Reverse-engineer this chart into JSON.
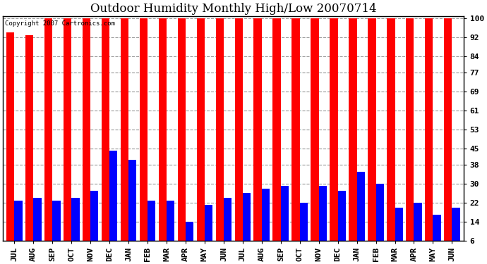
{
  "title": "Outdoor Humidity Monthly High/Low 20070714",
  "copyright_text": "Copyright 2007 Cartronics.com",
  "categories": [
    "JUL",
    "AUG",
    "SEP",
    "OCT",
    "NOV",
    "DEC",
    "JAN",
    "FEB",
    "MAR",
    "APR",
    "MAY",
    "JUN",
    "JUL",
    "AUG",
    "SEP",
    "OCT",
    "NOV",
    "DEC",
    "JAN",
    "FEB",
    "MAR",
    "APR",
    "MAY",
    "JUN"
  ],
  "high_values": [
    94,
    93,
    100,
    100,
    100,
    100,
    100,
    100,
    100,
    100,
    100,
    100,
    100,
    100,
    100,
    100,
    100,
    100,
    100,
    100,
    100,
    100,
    100,
    100
  ],
  "low_values": [
    23,
    24,
    23,
    24,
    27,
    44,
    40,
    23,
    23,
    14,
    21,
    24,
    26,
    28,
    29,
    22,
    29,
    27,
    35,
    30,
    20,
    22,
    17,
    20
  ],
  "bar_color_high": "#ff0000",
  "bar_color_low": "#0000ff",
  "background_color": "#ffffff",
  "plot_bg_color": "#ffffff",
  "grid_color": "#999999",
  "yticks": [
    6,
    14,
    22,
    30,
    38,
    45,
    53,
    61,
    69,
    77,
    84,
    92,
    100
  ],
  "ylim": [
    6,
    101
  ],
  "title_fontsize": 12,
  "tick_fontsize": 8,
  "bar_width": 0.42
}
